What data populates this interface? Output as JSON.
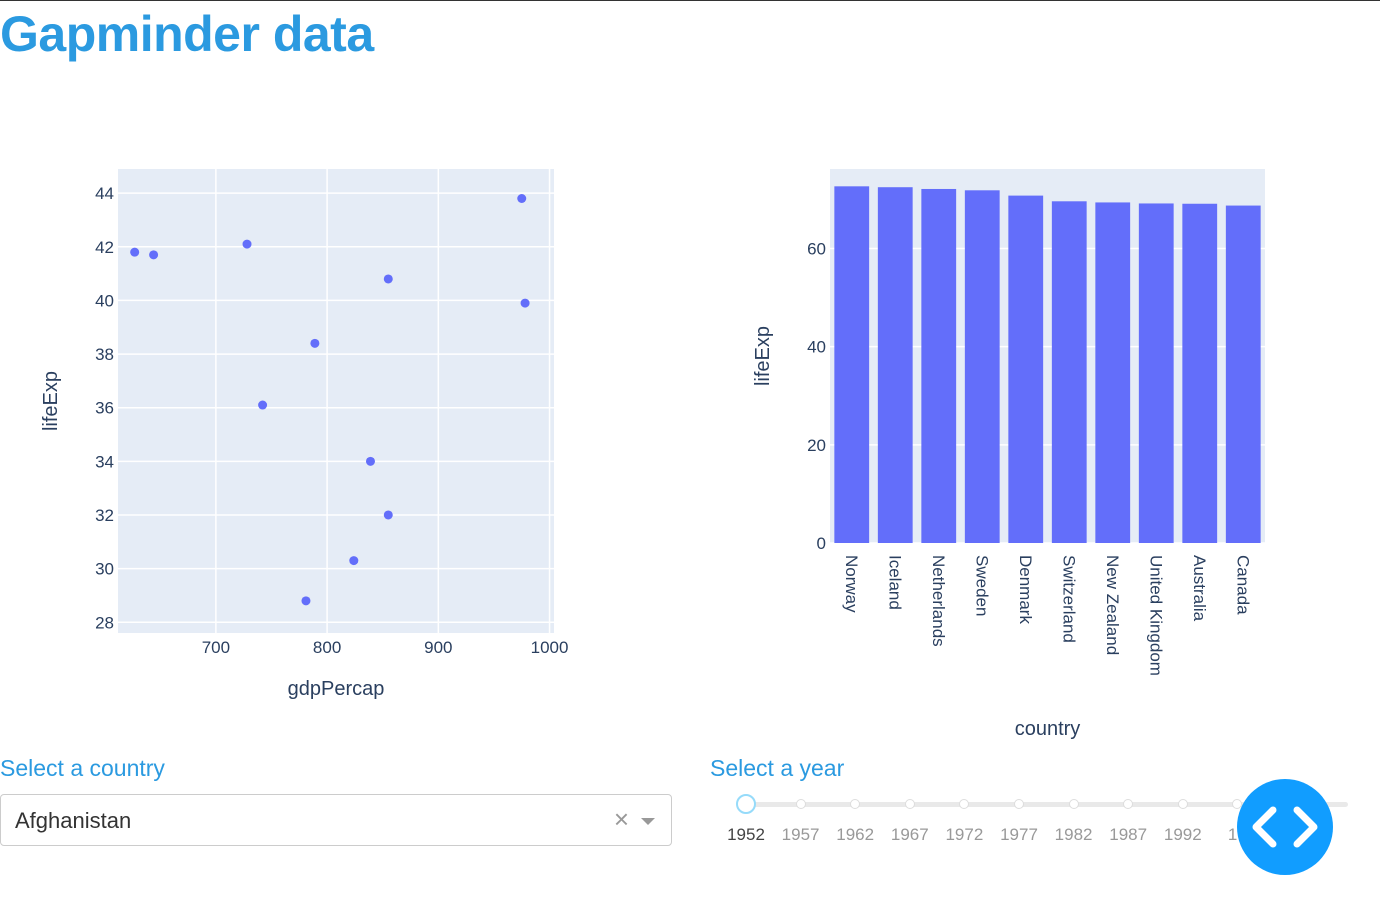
{
  "page": {
    "title": "Gapminder data"
  },
  "controls": {
    "country_label": "Select a country",
    "country_value": "Afghanistan",
    "clear_symbol": "×",
    "year_label": "Select a year",
    "year_marks": [
      "1952",
      "1957",
      "1962",
      "1967",
      "1972",
      "1977",
      "1982",
      "1987",
      "1992",
      "19"
    ],
    "selected_year": "1952"
  },
  "icons": {
    "clear": "close-icon",
    "dropdown": "chevron-down-icon",
    "devtools": "code-brackets-icon"
  },
  "colors": {
    "accent": "#2b9ae0",
    "marker": "#636efa",
    "plot_bg": "#e5ecf6",
    "devtools": "#119dff"
  },
  "chart_data": [
    {
      "type": "scatter",
      "xlabel": "gdpPercap",
      "ylabel": "lifeExp",
      "xlim": [
        612,
        1004
      ],
      "ylim": [
        27.6,
        44.9
      ],
      "xticks": [
        700,
        800,
        900,
        1000
      ],
      "yticks": [
        28,
        30,
        32,
        34,
        36,
        38,
        40,
        42,
        44
      ],
      "grid": true,
      "points": [
        {
          "x": 627,
          "y": 41.8
        },
        {
          "x": 644,
          "y": 41.7
        },
        {
          "x": 728,
          "y": 42.1
        },
        {
          "x": 975,
          "y": 43.8
        },
        {
          "x": 855,
          "y": 40.8
        },
        {
          "x": 978,
          "y": 39.9
        },
        {
          "x": 789,
          "y": 38.4
        },
        {
          "x": 742,
          "y": 36.1
        },
        {
          "x": 839,
          "y": 34.0
        },
        {
          "x": 855,
          "y": 32.0
        },
        {
          "x": 824,
          "y": 30.3
        },
        {
          "x": 781,
          "y": 28.8
        }
      ]
    },
    {
      "type": "bar",
      "xlabel": "country",
      "ylabel": "lifeExp",
      "ylim": [
        0,
        76.2
      ],
      "yticks": [
        0,
        20,
        40,
        60
      ],
      "grid": true,
      "categories": [
        "Norway",
        "Iceland",
        "Netherlands",
        "Sweden",
        "Denmark",
        "Switzerland",
        "New Zealand",
        "United Kingdom",
        "Australia",
        "Canada"
      ],
      "values": [
        72.67,
        72.49,
        72.13,
        71.86,
        70.78,
        69.62,
        69.39,
        69.18,
        69.12,
        68.75
      ]
    }
  ]
}
